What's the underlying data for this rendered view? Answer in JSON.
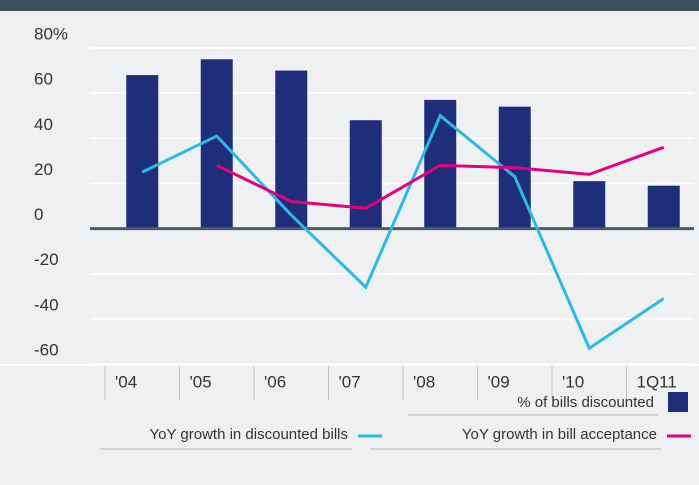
{
  "chart_data": {
    "type": "bar_line",
    "categories": [
      "'04",
      "'05",
      "'06",
      "'07",
      "'08",
      "'09",
      "'10",
      "1Q11"
    ],
    "series": [
      {
        "name": "% of bills discounted",
        "type": "bar",
        "color": "#1f2e7a",
        "values": [
          68,
          75,
          70,
          48,
          57,
          54,
          21,
          19
        ]
      },
      {
        "name": "YoY growth in discounted bills",
        "type": "line",
        "color": "#2cb9e8",
        "values": [
          25,
          41,
          6,
          -26,
          50,
          23,
          -53,
          -31
        ]
      },
      {
        "name": "YoY growth in bill acceptance",
        "type": "line",
        "color": "#e4007f",
        "values": [
          null,
          28,
          12,
          9,
          28,
          27,
          24,
          36
        ]
      }
    ],
    "ylim": [
      -60,
      80
    ],
    "yticks": [
      {
        "value": 80,
        "label": "80%"
      },
      60,
      40,
      20,
      0,
      -20,
      -40,
      -60
    ],
    "grid": true
  }
}
